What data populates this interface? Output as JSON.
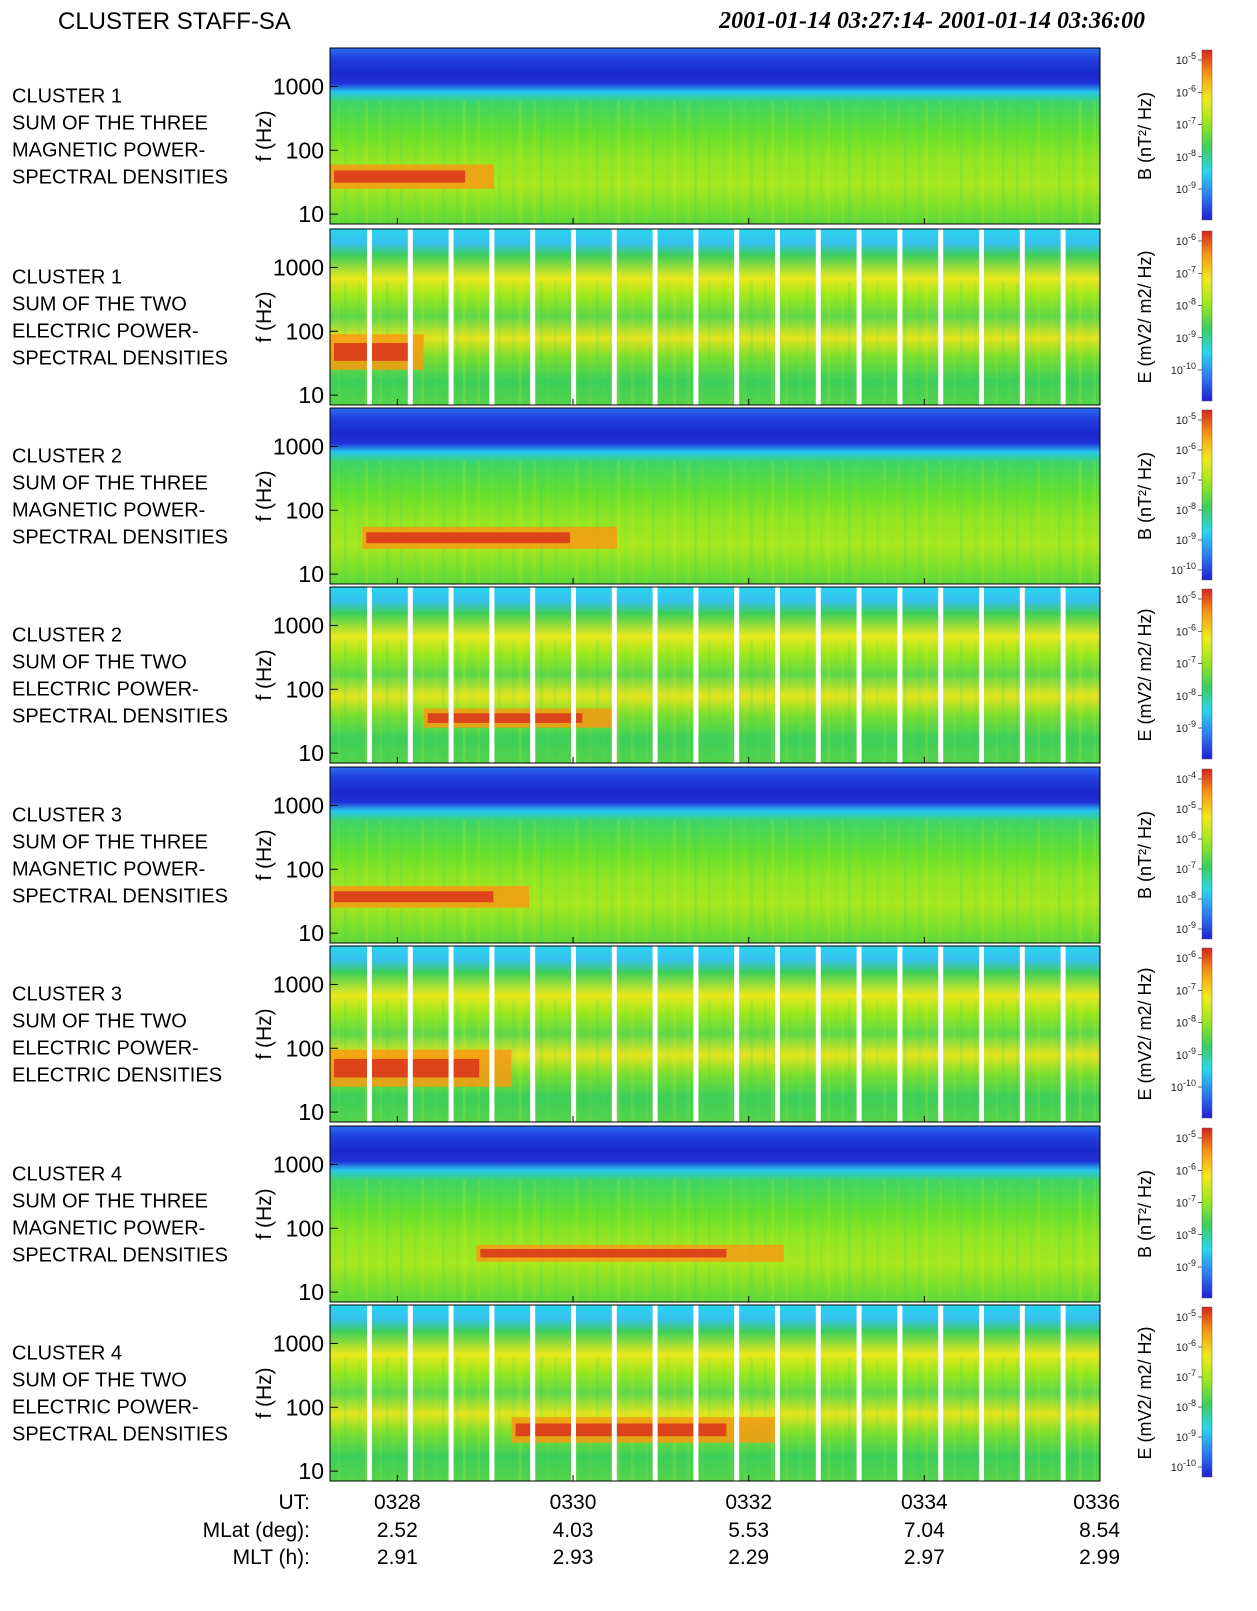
{
  "header": {
    "title": "CLUSTER STAFF-SA",
    "time_range": "2001-01-14 03:27:14- 2001-01-14 03:36:00"
  },
  "chart_data": {
    "type": "heatmap",
    "title": "CLUSTER STAFF-SA",
    "time_range": "2001-01-14 03:27:14- 2001-01-14 03:36:00",
    "ylabel": "f (Hz)",
    "yscale": "log",
    "ylim": [
      7,
      4000
    ],
    "y_ticks": [
      10,
      100,
      1000
    ],
    "y_tick_labels": [
      "10",
      "100",
      "1000"
    ],
    "xlim_ut_minutes": [
      27.233,
      36.0
    ],
    "colormap": [
      "#1f1fd6",
      "#2b7cf2",
      "#27d6ec",
      "#3ccf5a",
      "#9be81c",
      "#f2ea1a",
      "#f79a12",
      "#d8231c"
    ],
    "panels": [
      {
        "label": [
          "CLUSTER 1",
          "SUM OF THE THREE",
          "MAGNETIC POWER-",
          "SPECTRAL DENSITIES"
        ],
        "type": "B",
        "unit_label": "B (nT²/ Hz)",
        "cbar_ticks": [
          {
            "base": "10",
            "exp": "-5"
          },
          {
            "base": "10",
            "exp": "-6"
          },
          {
            "base": "10",
            "exp": "-7"
          },
          {
            "base": "10",
            "exp": "-8"
          },
          {
            "base": "10",
            "exp": "-9"
          }
        ],
        "red_band": {
          "t_range": [
            27.233,
            29.1
          ],
          "f_range": [
            25,
            60
          ]
        }
      },
      {
        "label": [
          "CLUSTER 1",
          "SUM OF THE TWO",
          "ELECTRIC POWER-",
          "SPECTRAL DENSITIES"
        ],
        "type": "E",
        "unit_label": "E (mV2/ m2/ Hz)",
        "cbar_ticks": [
          {
            "base": "10",
            "exp": "-6"
          },
          {
            "base": "10",
            "exp": "-7"
          },
          {
            "base": "10",
            "exp": "-8"
          },
          {
            "base": "10",
            "exp": "-9"
          },
          {
            "base": "10",
            "exp": "-10"
          }
        ],
        "red_band": {
          "t_range": [
            27.233,
            28.3
          ],
          "f_range": [
            25,
            90
          ]
        }
      },
      {
        "label": [
          "CLUSTER 2",
          "SUM OF THE THREE",
          "MAGNETIC POWER-",
          "SPECTRAL DENSITIES"
        ],
        "type": "B",
        "unit_label": "B (nT²/ Hz)",
        "cbar_ticks": [
          {
            "base": "10",
            "exp": "-5"
          },
          {
            "base": "10",
            "exp": "-6"
          },
          {
            "base": "10",
            "exp": "-7"
          },
          {
            "base": "10",
            "exp": "-8"
          },
          {
            "base": "10",
            "exp": "-9"
          },
          {
            "base": "10",
            "exp": "-10"
          }
        ],
        "red_band": {
          "t_range": [
            27.6,
            30.5
          ],
          "f_range": [
            25,
            55
          ]
        }
      },
      {
        "label": [
          "CLUSTER 2",
          "SUM OF THE TWO",
          "ELECTRIC POWER-",
          "SPECTRAL DENSITIES"
        ],
        "type": "E",
        "unit_label": "E (mV2/ m2/ Hz)",
        "cbar_ticks": [
          {
            "base": "10",
            "exp": "-5"
          },
          {
            "base": "10",
            "exp": "-6"
          },
          {
            "base": "10",
            "exp": "-7"
          },
          {
            "base": "10",
            "exp": "-8"
          },
          {
            "base": "10",
            "exp": "-9"
          }
        ],
        "red_band": {
          "t_range": [
            28.3,
            30.5
          ],
          "f_range": [
            25,
            50
          ]
        }
      },
      {
        "label": [
          "CLUSTER 3",
          "SUM OF THE THREE",
          "MAGNETIC POWER-",
          "SPECTRAL DENSITIES"
        ],
        "type": "B",
        "unit_label": "B (nT²/ Hz)",
        "cbar_ticks": [
          {
            "base": "10",
            "exp": "-4"
          },
          {
            "base": "10",
            "exp": "-5"
          },
          {
            "base": "10",
            "exp": "-6"
          },
          {
            "base": "10",
            "exp": "-7"
          },
          {
            "base": "10",
            "exp": "-8"
          },
          {
            "base": "10",
            "exp": "-9"
          }
        ],
        "red_band": {
          "t_range": [
            27.233,
            29.5
          ],
          "f_range": [
            25,
            55
          ]
        }
      },
      {
        "label": [
          "CLUSTER 3",
          "SUM OF THE TWO",
          "ELECTRIC POWER-",
          "ELECTRIC DENSITIES"
        ],
        "type": "E",
        "unit_label": "E (mV2/ m2/ Hz)",
        "cbar_ticks": [
          {
            "base": "10",
            "exp": "-6"
          },
          {
            "base": "10",
            "exp": "-7"
          },
          {
            "base": "10",
            "exp": "-8"
          },
          {
            "base": "10",
            "exp": "-9"
          },
          {
            "base": "10",
            "exp": "-10"
          }
        ],
        "red_band": {
          "t_range": [
            27.233,
            29.3
          ],
          "f_range": [
            25,
            95
          ]
        }
      },
      {
        "label": [
          "CLUSTER 4",
          "SUM OF THE THREE",
          "MAGNETIC POWER-",
          "SPECTRAL DENSITIES"
        ],
        "type": "B",
        "unit_label": "B (nT²/ Hz)",
        "cbar_ticks": [
          {
            "base": "10",
            "exp": "-5"
          },
          {
            "base": "10",
            "exp": "-6"
          },
          {
            "base": "10",
            "exp": "-7"
          },
          {
            "base": "10",
            "exp": "-8"
          },
          {
            "base": "10",
            "exp": "-9"
          }
        ],
        "red_band": {
          "t_range": [
            28.9,
            32.4
          ],
          "f_range": [
            30,
            55
          ]
        }
      },
      {
        "label": [
          "CLUSTER 4",
          "SUM OF THE TWO",
          "ELECTRIC POWER-",
          "SPECTRAL DENSITIES"
        ],
        "type": "E",
        "unit_label": "E (mV2/ m2/ Hz)",
        "cbar_ticks": [
          {
            "base": "10",
            "exp": "-5"
          },
          {
            "base": "10",
            "exp": "-6"
          },
          {
            "base": "10",
            "exp": "-7"
          },
          {
            "base": "10",
            "exp": "-8"
          },
          {
            "base": "10",
            "exp": "-9"
          },
          {
            "base": "10",
            "exp": "-10"
          }
        ],
        "red_band": {
          "t_range": [
            29.3,
            32.3
          ],
          "f_range": [
            28,
            70
          ]
        }
      }
    ],
    "x_axis": {
      "row_labels": [
        "UT:",
        "MLat (deg):",
        "MLT (h):"
      ],
      "ticks": [
        {
          "ut": "0328",
          "mlat": "2.52",
          "mlt": "2.91",
          "minute": 28
        },
        {
          "ut": "0330",
          "mlat": "4.03",
          "mlt": "2.93",
          "minute": 30
        },
        {
          "ut": "0332",
          "mlat": "5.53",
          "mlt": "2.29",
          "minute": 32
        },
        {
          "ut": "0334",
          "mlat": "7.04",
          "mlt": "2.97",
          "minute": 34
        },
        {
          "ut": "0336",
          "mlat": "8.54",
          "mlt": "2.99",
          "minute": 36
        }
      ]
    }
  }
}
